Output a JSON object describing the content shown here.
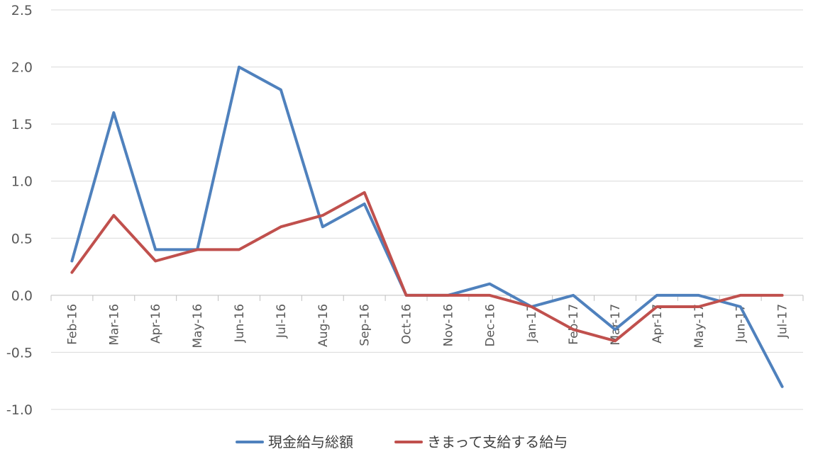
{
  "colors": {
    "series_1": "#4F81BD",
    "series_2": "#C0504D",
    "grid": "#D9D9D9",
    "tick_text": "#595959"
  },
  "chart_data": {
    "type": "line",
    "title": "",
    "xlabel": "",
    "ylabel": "",
    "categories": [
      "Feb-16",
      "Mar-16",
      "Apr-16",
      "May-16",
      "Jun-16",
      "Jul-16",
      "Aug-16",
      "Sep-16",
      "Oct-16",
      "Nov-16",
      "Dec-16",
      "Jan-17",
      "Feb-17",
      "Mar-17",
      "Apr-17",
      "May-17",
      "Jun-17",
      "Jul-17"
    ],
    "ylim": [
      -1.0,
      2.5
    ],
    "yticks": [
      -1.0,
      -0.5,
      0.0,
      0.5,
      1.0,
      1.5,
      2.0,
      2.5
    ],
    "ytick_labels": [
      "-1.0",
      "-0.5",
      "0.0",
      "0.5",
      "1.0",
      "1.5",
      "2.0",
      "2.5"
    ],
    "grid": true,
    "legend_position": "bottom",
    "series": [
      {
        "name": "現金給与総額",
        "color": "#4F81BD",
        "values": [
          0.3,
          1.6,
          0.4,
          0.4,
          2.0,
          1.8,
          0.6,
          0.8,
          0.0,
          0.0,
          0.1,
          -0.1,
          0.0,
          -0.3,
          0.0,
          0.0,
          -0.1,
          -0.8
        ]
      },
      {
        "name": "きまって支給する給与",
        "color": "#C0504D",
        "values": [
          0.2,
          0.7,
          0.3,
          0.4,
          0.4,
          0.6,
          0.7,
          0.9,
          0.0,
          0.0,
          0.0,
          -0.1,
          -0.3,
          -0.4,
          -0.1,
          -0.1,
          0.0,
          0.0
        ]
      }
    ]
  }
}
